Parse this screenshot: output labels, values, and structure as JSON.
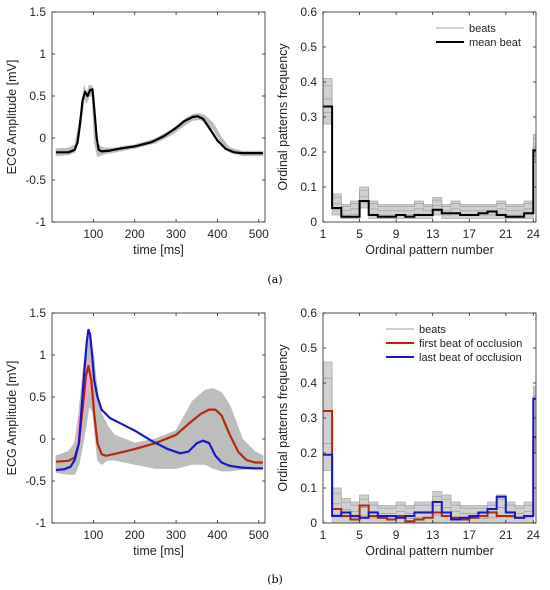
{
  "chart_data": [
    {
      "id": "a-left",
      "type": "line",
      "xlabel": "time [ms]",
      "ylabel": "ECG Amplitude [mV]",
      "xlim": [
        0,
        515
      ],
      "ylim": [
        -1,
        1.5
      ],
      "xticks": [
        100,
        200,
        300,
        400,
        500
      ],
      "yticks": [
        -1,
        -0.5,
        0,
        0.5,
        1,
        1.5
      ],
      "grid": false,
      "series": [
        {
          "role": "band",
          "color": "#bdbdbd",
          "x": [
            10,
            40,
            55,
            65,
            72,
            78,
            84,
            90,
            97,
            103,
            110,
            125,
            150,
            200,
            250,
            290,
            320,
            340,
            355,
            370,
            390,
            410,
            430,
            460,
            480,
            510
          ],
          "upper": [
            -0.13,
            -0.12,
            -0.08,
            0.15,
            0.38,
            0.62,
            0.52,
            0.63,
            0.62,
            0.2,
            -0.08,
            -0.12,
            -0.12,
            -0.08,
            -0.01,
            0.1,
            0.22,
            0.28,
            0.29,
            0.27,
            0.17,
            0.0,
            -0.12,
            -0.16,
            -0.16,
            -0.16
          ],
          "lower": [
            -0.21,
            -0.2,
            -0.17,
            0.0,
            0.25,
            0.48,
            0.42,
            0.5,
            0.5,
            -0.05,
            -0.22,
            -0.19,
            -0.17,
            -0.12,
            -0.06,
            0.04,
            0.15,
            0.21,
            0.22,
            0.2,
            0.1,
            -0.06,
            -0.17,
            -0.21,
            -0.21,
            -0.21
          ]
        },
        {
          "name": "mean beat",
          "color": "#000000",
          "x": [
            10,
            40,
            55,
            62,
            68,
            74,
            80,
            86,
            92,
            98,
            103,
            108,
            113,
            120,
            140,
            160,
            200,
            240,
            270,
            300,
            320,
            340,
            352,
            365,
            380,
            400,
            420,
            440,
            460,
            480,
            510
          ],
          "y": [
            -0.17,
            -0.17,
            -0.14,
            -0.05,
            0.18,
            0.45,
            0.55,
            0.5,
            0.57,
            0.58,
            0.3,
            0.0,
            -0.14,
            -0.16,
            -0.15,
            -0.13,
            -0.1,
            -0.05,
            0.02,
            0.12,
            0.2,
            0.25,
            0.26,
            0.23,
            0.12,
            -0.03,
            -0.13,
            -0.17,
            -0.18,
            -0.18,
            -0.18
          ]
        }
      ]
    },
    {
      "id": "a-right",
      "type": "line",
      "xlabel": "Ordinal pattern number",
      "ylabel": "Ordinal patterns frequency",
      "xlim": [
        1,
        24
      ],
      "ylim": [
        0,
        0.6
      ],
      "xticks": [
        1,
        5,
        9,
        13,
        17,
        21,
        24
      ],
      "yticks": [
        0,
        0.1,
        0.2,
        0.3,
        0.4,
        0.5,
        0.6
      ],
      "grid": false,
      "legend": {
        "position": "top-right",
        "entries": [
          "beats",
          "mean beat"
        ]
      },
      "band": {
        "lower": [
          0.28,
          0.02,
          0.01,
          0.01,
          0.04,
          0.01,
          0.01,
          0.01,
          0.01,
          0.01,
          0.01,
          0.01,
          0.02,
          0.01,
          0.01,
          0.01,
          0.01,
          0.01,
          0.01,
          0.01,
          0.01,
          0.01,
          0.01,
          0.17
        ],
        "upper": [
          0.41,
          0.08,
          0.05,
          0.06,
          0.1,
          0.06,
          0.05,
          0.05,
          0.05,
          0.05,
          0.06,
          0.05,
          0.07,
          0.05,
          0.06,
          0.05,
          0.05,
          0.05,
          0.05,
          0.06,
          0.05,
          0.05,
          0.06,
          0.25
        ]
      },
      "series": [
        {
          "name": "beats",
          "color": "#b3b3b3"
        },
        {
          "name": "mean beat",
          "color": "#000000",
          "values": [
            0.33,
            0.04,
            0.015,
            0.015,
            0.06,
            0.02,
            0.015,
            0.015,
            0.02,
            0.015,
            0.02,
            0.02,
            0.035,
            0.025,
            0.025,
            0.02,
            0.02,
            0.025,
            0.03,
            0.02,
            0.015,
            0.015,
            0.025,
            0.205
          ]
        }
      ]
    },
    {
      "id": "b-left",
      "type": "line",
      "xlabel": "time [ms]",
      "ylabel": "ECG Amplitude [mV]",
      "xlim": [
        0,
        515
      ],
      "ylim": [
        -1,
        1.5
      ],
      "xticks": [
        100,
        200,
        300,
        400,
        500
      ],
      "yticks": [
        -1,
        -0.5,
        0,
        0.5,
        1,
        1.5
      ],
      "grid": false,
      "series": [
        {
          "role": "band",
          "color": "#bdbdbd",
          "x": [
            10,
            40,
            55,
            65,
            75,
            85,
            90,
            100,
            110,
            120,
            135,
            150,
            200,
            250,
            300,
            340,
            370,
            390,
            410,
            430,
            460,
            490,
            510
          ],
          "upper": [
            -0.2,
            -0.15,
            -0.05,
            0.3,
            0.8,
            1.2,
            1.25,
            1.0,
            0.55,
            0.3,
            0.15,
            0.05,
            -0.05,
            0.0,
            0.1,
            0.45,
            0.58,
            0.6,
            0.55,
            0.4,
            0.0,
            -0.15,
            -0.2
          ],
          "lower": [
            -0.4,
            -0.42,
            -0.42,
            -0.3,
            -0.05,
            0.25,
            0.4,
            0.3,
            -0.25,
            -0.3,
            -0.25,
            -0.25,
            -0.3,
            -0.35,
            -0.35,
            -0.3,
            -0.3,
            -0.35,
            -0.38,
            -0.38,
            -0.36,
            -0.35,
            -0.35
          ]
        },
        {
          "role": "band",
          "color": "#f4a9c9",
          "x": [
            60,
            70,
            80,
            88,
            95,
            105
          ],
          "upper": [
            0.1,
            0.4,
            0.85,
            0.95,
            0.8,
            0.3
          ],
          "lower": [
            -0.2,
            0.0,
            0.4,
            0.6,
            0.5,
            0.0
          ]
        },
        {
          "name": "first beat of occlusion",
          "color": "#b22a0b",
          "x": [
            10,
            40,
            55,
            65,
            75,
            82,
            88,
            95,
            102,
            110,
            120,
            130,
            150,
            200,
            250,
            300,
            330,
            360,
            380,
            395,
            410,
            430,
            450,
            470,
            490,
            510
          ],
          "y": [
            -0.27,
            -0.26,
            -0.22,
            -0.05,
            0.4,
            0.75,
            0.87,
            0.7,
            0.3,
            -0.05,
            -0.18,
            -0.2,
            -0.18,
            -0.12,
            -0.05,
            0.05,
            0.18,
            0.3,
            0.35,
            0.35,
            0.28,
            0.05,
            -0.15,
            -0.25,
            -0.28,
            -0.28
          ]
        },
        {
          "name": "last beat of occlusion",
          "color": "#1818c8",
          "x": [
            10,
            30,
            45,
            55,
            65,
            72,
            78,
            84,
            88,
            92,
            97,
            102,
            110,
            120,
            140,
            160,
            200,
            240,
            280,
            310,
            330,
            350,
            365,
            380,
            395,
            410,
            430,
            460,
            490,
            510
          ],
          "y": [
            -0.37,
            -0.36,
            -0.33,
            -0.25,
            -0.05,
            0.4,
            0.8,
            1.15,
            1.3,
            1.25,
            1.0,
            0.7,
            0.5,
            0.35,
            0.25,
            0.2,
            0.1,
            -0.02,
            -0.12,
            -0.17,
            -0.15,
            -0.05,
            -0.02,
            -0.05,
            -0.2,
            -0.28,
            -0.32,
            -0.34,
            -0.35,
            -0.35
          ]
        }
      ]
    },
    {
      "id": "b-right",
      "type": "line",
      "xlabel": "Ordinal pattern number",
      "ylabel": "Ordinal patterns frequency",
      "xlim": [
        1,
        24
      ],
      "ylim": [
        0,
        0.6
      ],
      "xticks": [
        1,
        5,
        9,
        13,
        17,
        21,
        24
      ],
      "yticks": [
        0,
        0.1,
        0.2,
        0.3,
        0.4,
        0.5,
        0.6
      ],
      "grid": false,
      "legend": {
        "position": "top-right",
        "entries": [
          "beats",
          "first beat of occlusion",
          "last beat of occlusion"
        ]
      },
      "band": {
        "lower": [
          0.15,
          0.0,
          0.0,
          0.0,
          0.0,
          0.0,
          0.0,
          0.0,
          0.0,
          0.0,
          0.0,
          0.0,
          0.0,
          0.0,
          0.0,
          0.0,
          0.0,
          0.0,
          0.0,
          0.0,
          0.0,
          0.0,
          0.0,
          0.2
        ],
        "upper": [
          0.46,
          0.1,
          0.07,
          0.06,
          0.08,
          0.06,
          0.05,
          0.05,
          0.06,
          0.05,
          0.06,
          0.06,
          0.09,
          0.08,
          0.06,
          0.05,
          0.05,
          0.05,
          0.06,
          0.08,
          0.06,
          0.05,
          0.06,
          0.39
        ]
      },
      "series": [
        {
          "name": "beats",
          "color": "#b3b3b3"
        },
        {
          "name": "first beat of occlusion",
          "color": "#b22a0b",
          "values": [
            0.32,
            0.04,
            0.02,
            0.01,
            0.05,
            0.02,
            0.015,
            0.01,
            0.02,
            0.005,
            0.01,
            0.015,
            0.03,
            0.02,
            0.015,
            0.01,
            0.015,
            0.02,
            0.03,
            0.02,
            0.02,
            0.015,
            0.02,
            0.245
          ]
        },
        {
          "name": "last beat of occlusion",
          "color": "#1818c8",
          "values": [
            0.195,
            0.02,
            0.03,
            0.02,
            0.015,
            0.03,
            0.02,
            0.02,
            0.015,
            0.02,
            0.03,
            0.03,
            0.06,
            0.03,
            0.01,
            0.015,
            0.02,
            0.03,
            0.04,
            0.075,
            0.03,
            0.015,
            0.02,
            0.355
          ]
        }
      ]
    }
  ],
  "captions": [
    "(a)",
    "(b)"
  ]
}
